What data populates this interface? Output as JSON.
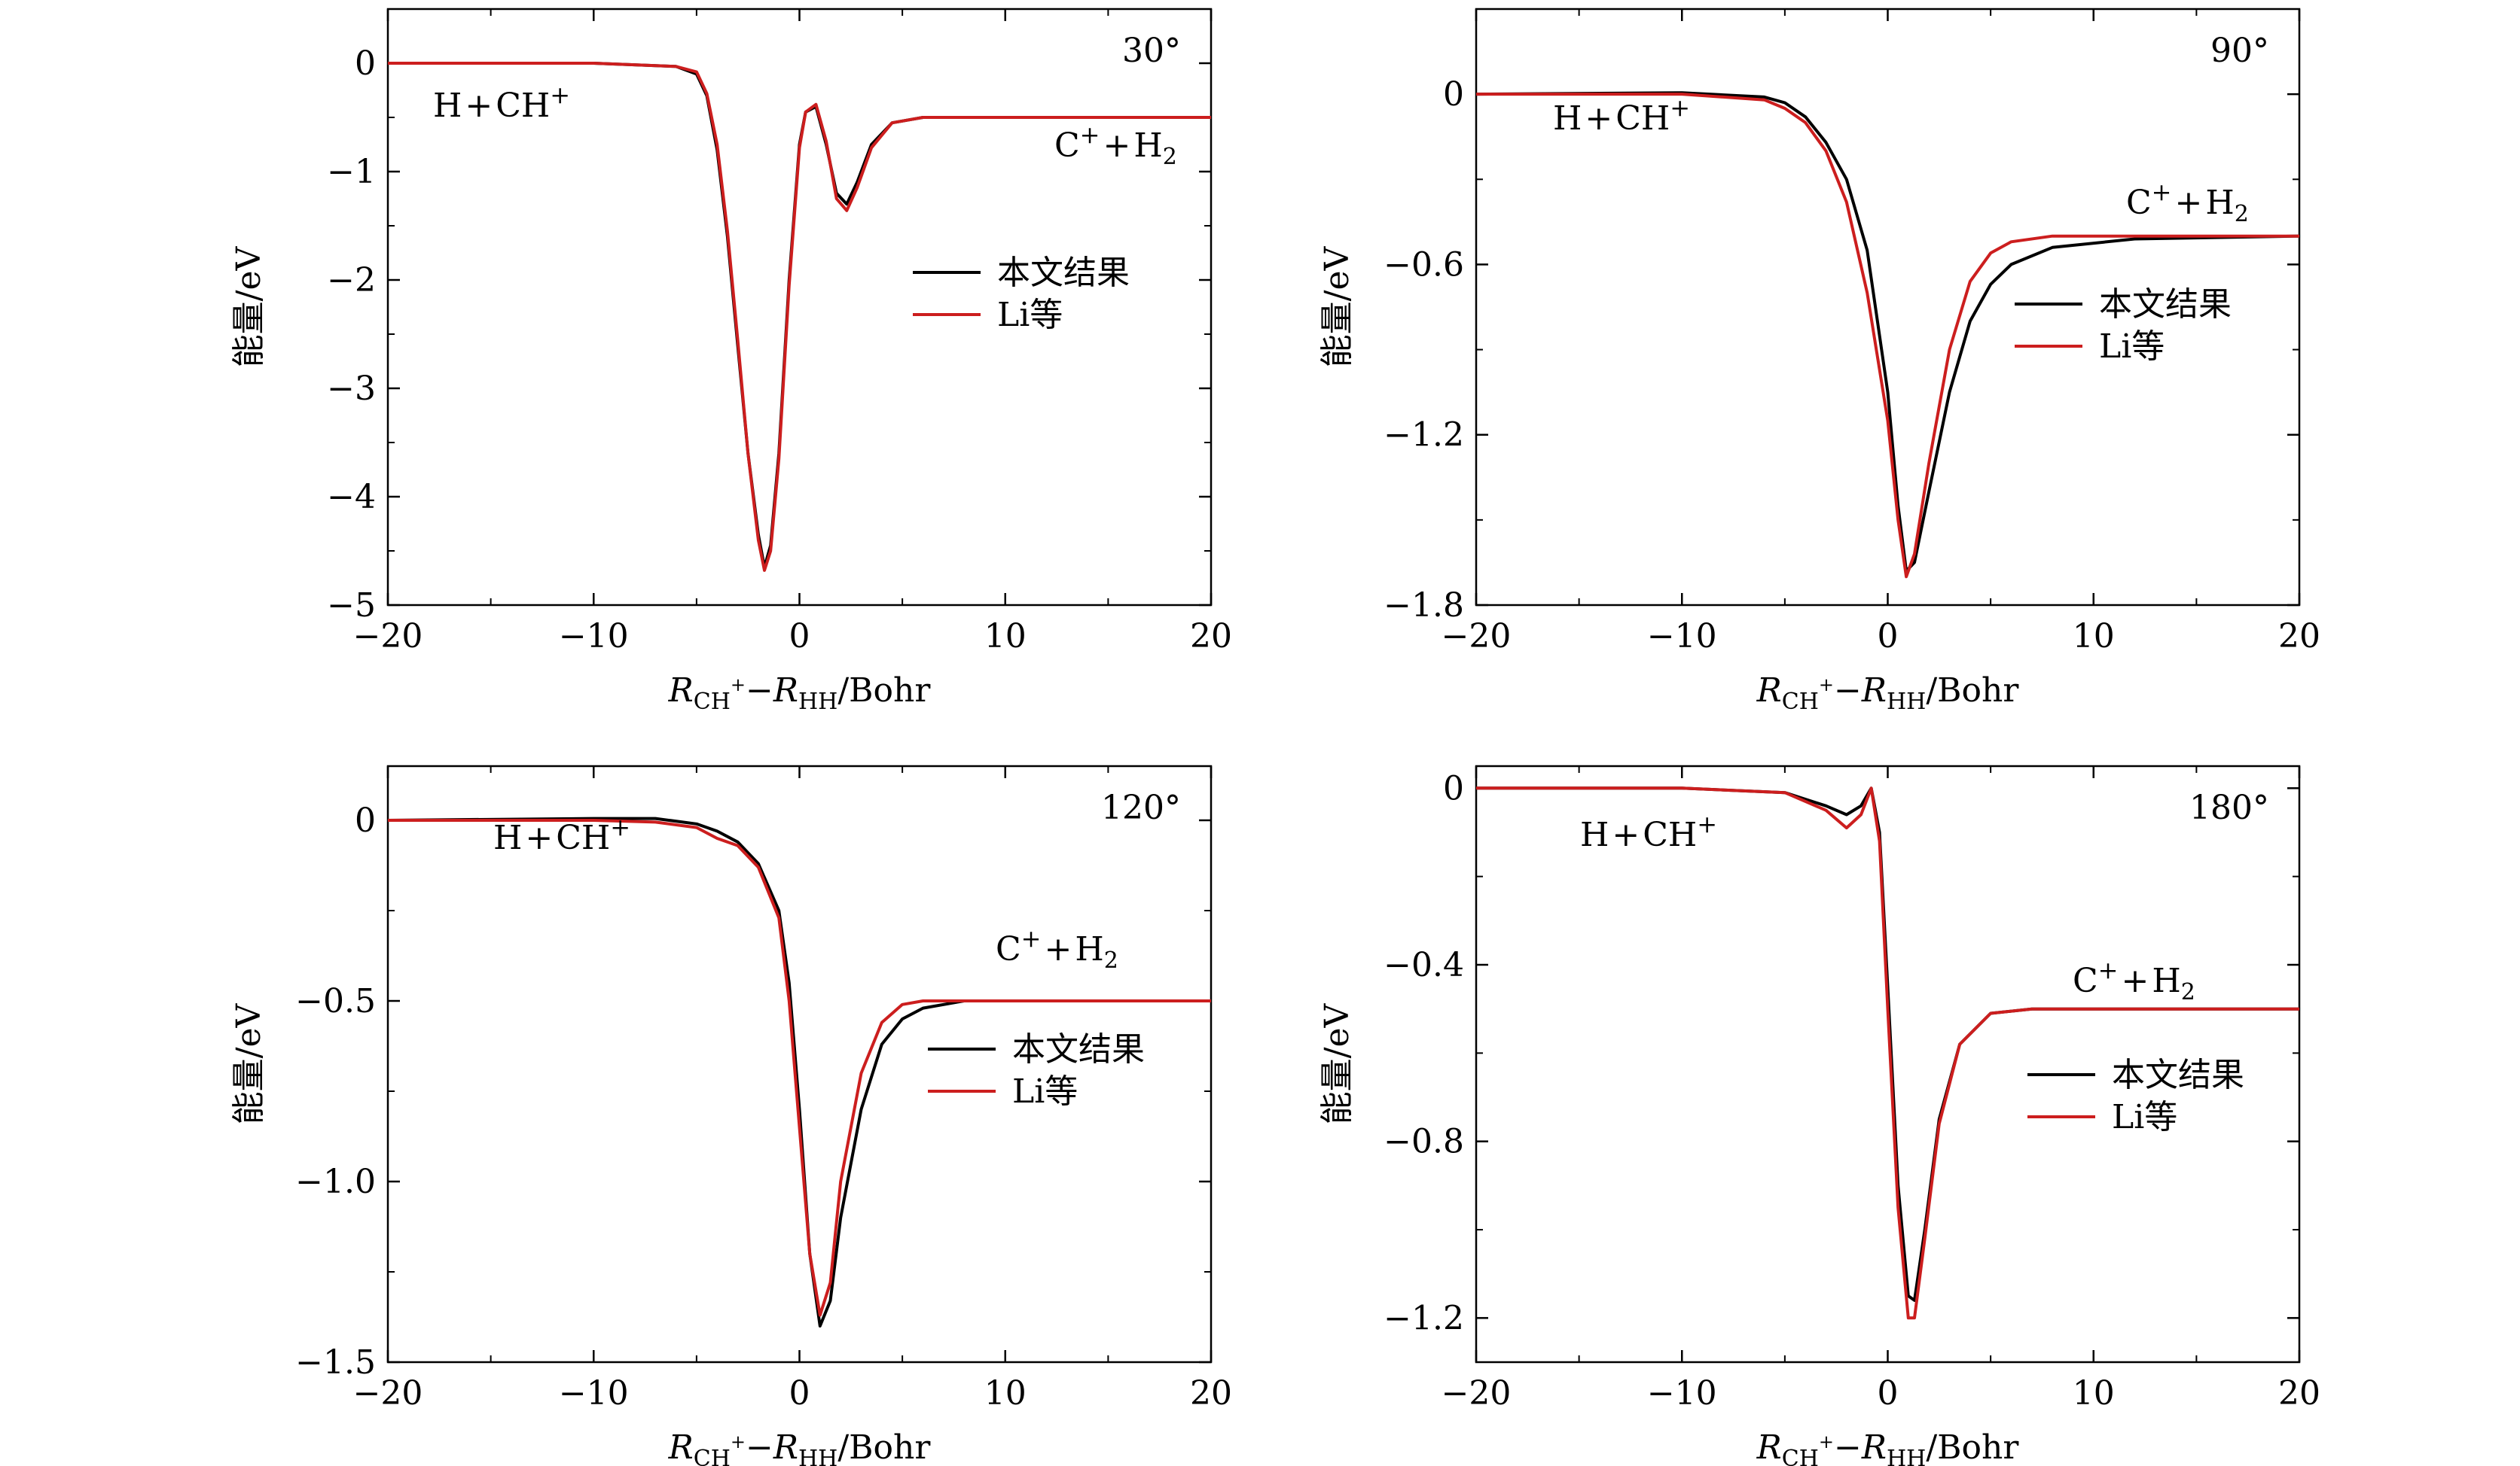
{
  "chart_data": [
    {
      "type": "line",
      "annotation": "30°",
      "xlabel": {
        "main": "R",
        "sub1": "CH",
        "sup1": "+",
        "dash": "−",
        "main2": "R",
        "sub2": "HH",
        "unit": "/Bohr"
      },
      "ylabel": "能量/eV",
      "xlim": [
        -20,
        20
      ],
      "ylim": [
        -5,
        0.5
      ],
      "xticks": [
        -20,
        -10,
        0,
        10,
        20
      ],
      "xtick_labels": [
        "−20",
        "−10",
        "0",
        "10",
        "20"
      ],
      "yticks": [
        0,
        -1,
        -2,
        -3,
        -4,
        -5
      ],
      "ytick_labels": [
        "0",
        "−1",
        "−2",
        "−3",
        "−4",
        "−5"
      ],
      "labels": {
        "left": {
          "a": "H",
          "plus": "+",
          "b": "CH",
          "sup": "+"
        },
        "right": {
          "a": "C",
          "sup": "+",
          "plus": "+",
          "b": "H",
          "sub": "2"
        }
      },
      "legend": {
        "position": "center-right",
        "entries": [
          "本文结果",
          "Li等"
        ]
      },
      "series": [
        {
          "name": "本文结果",
          "color": "#000000",
          "x": [
            -20,
            -10,
            -6,
            -5,
            -4.5,
            -4,
            -3.5,
            -3,
            -2.5,
            -2,
            -1.7,
            -1.4,
            -1,
            -0.5,
            0,
            0.3,
            0.8,
            1.3,
            1.8,
            2.3,
            2.8,
            3.5,
            4.5,
            6,
            8,
            12,
            20
          ],
          "y": [
            0,
            0,
            -0.03,
            -0.1,
            -0.3,
            -0.8,
            -1.6,
            -2.6,
            -3.6,
            -4.35,
            -4.65,
            -4.45,
            -3.6,
            -2.0,
            -0.75,
            -0.45,
            -0.4,
            -0.75,
            -1.2,
            -1.3,
            -1.1,
            -0.75,
            -0.55,
            -0.5,
            -0.5,
            -0.5,
            -0.5
          ]
        },
        {
          "name": "Li等",
          "color": "#cc1e1e",
          "x": [
            -20,
            -10,
            -6,
            -5,
            -4.5,
            -4,
            -3.5,
            -3,
            -2.5,
            -2,
            -1.7,
            -1.4,
            -1,
            -0.5,
            0,
            0.3,
            0.8,
            1.3,
            1.8,
            2.3,
            2.8,
            3.5,
            4.5,
            6,
            8,
            12,
            20
          ],
          "y": [
            0,
            0,
            -0.03,
            -0.08,
            -0.28,
            -0.75,
            -1.55,
            -2.55,
            -3.6,
            -4.4,
            -4.68,
            -4.5,
            -3.65,
            -2.05,
            -0.78,
            -0.45,
            -0.38,
            -0.72,
            -1.25,
            -1.36,
            -1.15,
            -0.78,
            -0.55,
            -0.5,
            -0.5,
            -0.5,
            -0.5
          ]
        }
      ]
    },
    {
      "type": "line",
      "annotation": "90°",
      "xlabel": {
        "main": "R",
        "sub1": "CH",
        "sup1": "+",
        "dash": "−",
        "main2": "R",
        "sub2": "HH",
        "unit": "/Bohr"
      },
      "ylabel": "能量/eV",
      "xlim": [
        -20,
        20
      ],
      "ylim": [
        -1.8,
        0.3
      ],
      "xticks": [
        -20,
        -10,
        0,
        10,
        20
      ],
      "xtick_labels": [
        "−20",
        "−10",
        "0",
        "10",
        "20"
      ],
      "yticks": [
        0,
        -0.6,
        -1.2,
        -1.8
      ],
      "ytick_labels": [
        "0",
        "−0.6",
        "−1.2",
        "−1.8"
      ],
      "labels": {
        "left": {
          "a": "H",
          "plus": "+",
          "b": "CH",
          "sup": "+"
        },
        "right": {
          "a": "C",
          "sup": "+",
          "plus": "+",
          "b": "H",
          "sub": "2"
        }
      },
      "legend": {
        "position": "center-right",
        "entries": [
          "本文结果",
          "Li等"
        ]
      },
      "series": [
        {
          "name": "本文结果",
          "color": "#000000",
          "x": [
            -20,
            -10,
            -6,
            -5,
            -4,
            -3,
            -2,
            -1,
            0,
            0.5,
            0.9,
            1.3,
            2,
            3,
            4,
            5,
            6,
            8,
            12,
            20
          ],
          "y": [
            0,
            0.005,
            -0.01,
            -0.03,
            -0.08,
            -0.17,
            -0.3,
            -0.55,
            -1.05,
            -1.45,
            -1.68,
            -1.65,
            -1.4,
            -1.05,
            -0.8,
            -0.67,
            -0.6,
            -0.54,
            -0.51,
            -0.5
          ]
        },
        {
          "name": "Li等",
          "color": "#cc1e1e",
          "x": [
            -20,
            -10,
            -6,
            -5,
            -4,
            -3,
            -2,
            -1,
            0,
            0.5,
            0.9,
            1.3,
            2,
            3,
            4,
            5,
            6,
            8,
            12,
            20
          ],
          "y": [
            0,
            0.0,
            -0.02,
            -0.05,
            -0.1,
            -0.2,
            -0.38,
            -0.7,
            -1.15,
            -1.5,
            -1.7,
            -1.62,
            -1.3,
            -0.9,
            -0.66,
            -0.56,
            -0.52,
            -0.5,
            -0.5,
            -0.5
          ]
        }
      ]
    },
    {
      "type": "line",
      "annotation": "120°",
      "xlabel": {
        "main": "R",
        "sub1": "CH",
        "sup1": "+",
        "dash": "−",
        "main2": "R",
        "sub2": "HH",
        "unit": "/Bohr"
      },
      "ylabel": "能量/eV",
      "xlim": [
        -20,
        20
      ],
      "ylim": [
        -1.5,
        0.15
      ],
      "xticks": [
        -20,
        -10,
        0,
        10,
        20
      ],
      "xtick_labels": [
        "−20",
        "−10",
        "0",
        "10",
        "20"
      ],
      "yticks": [
        0,
        -0.5,
        -1.0,
        -1.5
      ],
      "ytick_labels": [
        "0",
        "−0.5",
        "−1.0",
        "−1.5"
      ],
      "labels": {
        "left": {
          "a": "H",
          "plus": "+",
          "b": "CH",
          "sup": "+"
        },
        "right": {
          "a": "C",
          "sup": "+",
          "plus": "+",
          "b": "H",
          "sub": "2"
        }
      },
      "legend": {
        "position": "center-right",
        "entries": [
          "本文结果",
          "Li等"
        ]
      },
      "series": [
        {
          "name": "本文结果",
          "color": "#000000",
          "x": [
            -20,
            -10,
            -7,
            -5,
            -4,
            -3,
            -2,
            -1,
            -0.5,
            0,
            0.5,
            1,
            1.5,
            2,
            3,
            4,
            5,
            6,
            8,
            12,
            20
          ],
          "y": [
            0,
            0.005,
            0.005,
            -0.01,
            -0.03,
            -0.06,
            -0.12,
            -0.25,
            -0.45,
            -0.8,
            -1.2,
            -1.4,
            -1.33,
            -1.1,
            -0.8,
            -0.62,
            -0.55,
            -0.52,
            -0.5,
            -0.5,
            -0.5
          ]
        },
        {
          "name": "Li等",
          "color": "#cc1e1e",
          "x": [
            -20,
            -10,
            -7,
            -5,
            -4,
            -3,
            -2,
            -1,
            -0.5,
            0,
            0.5,
            1,
            1.5,
            2,
            3,
            4,
            5,
            6,
            8,
            12,
            20
          ],
          "y": [
            0,
            0.0,
            -0.005,
            -0.02,
            -0.05,
            -0.07,
            -0.13,
            -0.27,
            -0.5,
            -0.85,
            -1.2,
            -1.37,
            -1.28,
            -1.0,
            -0.7,
            -0.56,
            -0.51,
            -0.5,
            -0.5,
            -0.5,
            -0.5
          ]
        }
      ]
    },
    {
      "type": "line",
      "annotation": "180°",
      "xlabel": {
        "main": "R",
        "sub1": "CH",
        "sup1": "+",
        "dash": "−",
        "main2": "R",
        "sub2": "HH",
        "unit": "/Bohr"
      },
      "ylabel": "能量/eV",
      "xlim": [
        -20,
        20
      ],
      "ylim": [
        -1.3,
        0.05
      ],
      "xticks": [
        -20,
        -10,
        0,
        10,
        20
      ],
      "xtick_labels": [
        "−20",
        "−10",
        "0",
        "10",
        "20"
      ],
      "yticks": [
        0,
        -0.4,
        -0.8,
        -1.2
      ],
      "ytick_labels": [
        "0",
        "−0.4",
        "−0.8",
        "−1.2"
      ],
      "labels": {
        "left": {
          "a": "H",
          "plus": "+",
          "b": "CH",
          "sup": "+"
        },
        "right": {
          "a": "C",
          "sup": "+",
          "plus": "+",
          "b": "H",
          "sub": "2"
        }
      },
      "legend": {
        "position": "center-right",
        "entries": [
          "本文结果",
          "Li等"
        ]
      },
      "series": [
        {
          "name": "本文结果",
          "color": "#000000",
          "x": [
            -20,
            -10,
            -5,
            -3,
            -2,
            -1.3,
            -0.8,
            -0.4,
            0,
            0.5,
            1,
            1.3,
            1.8,
            2.5,
            3.5,
            5,
            7,
            10,
            20
          ],
          "y": [
            0,
            0.0,
            -0.01,
            -0.04,
            -0.06,
            -0.04,
            0.0,
            -0.1,
            -0.45,
            -0.9,
            -1.15,
            -1.16,
            -1.0,
            -0.75,
            -0.58,
            -0.51,
            -0.5,
            -0.5,
            -0.5
          ]
        },
        {
          "name": "Li等",
          "color": "#cc1e1e",
          "x": [
            -20,
            -10,
            -5,
            -3,
            -2,
            -1.3,
            -0.8,
            -0.4,
            0,
            0.5,
            1,
            1.3,
            1.8,
            2.5,
            3.5,
            5,
            7,
            10,
            20
          ],
          "y": [
            0,
            0.0,
            -0.01,
            -0.05,
            -0.09,
            -0.06,
            0.0,
            -0.12,
            -0.5,
            -0.95,
            -1.2,
            -1.2,
            -1.02,
            -0.76,
            -0.58,
            -0.51,
            -0.5,
            -0.5,
            -0.5
          ]
        }
      ]
    }
  ]
}
